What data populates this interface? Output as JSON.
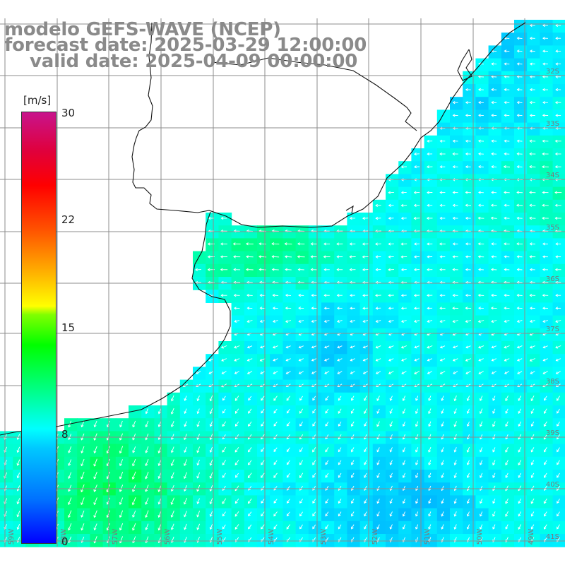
{
  "header": {
    "line1": "modelo GEFS-WAVE (NCEP)",
    "line2": "forecast date: 2025-03-29 12:00:00",
    "line3": "valid date: 2025-04-09 00:00:00"
  },
  "colorbar": {
    "unit": "[m/s]",
    "ticks": [
      {
        "label": "30",
        "value": 30
      },
      {
        "label": "22",
        "value": 22
      },
      {
        "label": "15",
        "value": 15
      },
      {
        "label": "8",
        "value": 8
      },
      {
        "label": "0",
        "value": 0
      }
    ],
    "range": [
      0,
      30
    ],
    "colors": [
      "#0000ff",
      "#00c8ff",
      "#00ffff",
      "#00ff00",
      "#ffff00",
      "#ff0000",
      "#c8148c"
    ]
  },
  "map": {
    "lat_labels": [
      "32S",
      "33S",
      "34S",
      "35S",
      "36S",
      "37S",
      "38S",
      "39S",
      "40S",
      "41S"
    ],
    "lon_labels": [
      "59W",
      "58W",
      "57W",
      "56W",
      "55W",
      "54W",
      "53W",
      "52W",
      "51W",
      "50W",
      "49W"
    ],
    "colors": {
      "land": "#ffffff",
      "grid": "#8c8c8c",
      "coast": "#111111",
      "arrow": "#ffffff"
    }
  }
}
